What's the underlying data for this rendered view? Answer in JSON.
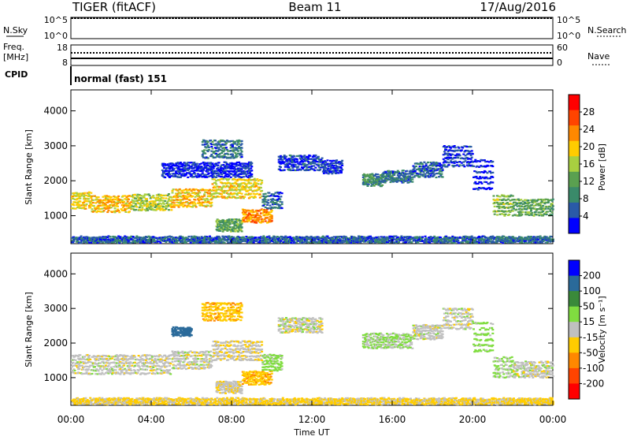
{
  "header": {
    "radar": "TIGER (fitACF)",
    "beam": "Beam 11",
    "date": "17/Aug/2016"
  },
  "strip_nsky": {
    "left_label": "N.Sky",
    "right_label": "N.Search",
    "left_ticks": [
      "10^5",
      "10^0"
    ],
    "right_ticks": [
      "10^5",
      "10^0"
    ]
  },
  "strip_freq": {
    "left_label_1": "Freq.",
    "left_label_2": "[MHz]",
    "right_label": "Nave",
    "left_ticks": [
      "18",
      "8"
    ],
    "right_ticks": [
      "60",
      "0"
    ]
  },
  "cpid": {
    "label": "CPID",
    "mode_text": "normal (fast) 151"
  },
  "colors": {
    "power_scale": [
      "#0000ff",
      "#2a5aa8",
      "#3a8a6a",
      "#5aa050",
      "#a8d040",
      "#ffcc00",
      "#ff8800",
      "#ff4400",
      "#ff0000"
    ],
    "velocity_scale": [
      "#ff0000",
      "#ff4400",
      "#ff8800",
      "#ffcc00",
      "#c0c0c0",
      "#80dd40",
      "#3a8a3a",
      "#2a6a9a",
      "#0000ff"
    ]
  },
  "chart_data": [
    {
      "type": "heatmap",
      "name": "power",
      "xlabel": "",
      "ylabel": "Slant Range [km]",
      "ylim": [
        200,
        4600
      ],
      "y_ticks": [
        "1000",
        "2000",
        "3000",
        "4000"
      ],
      "x_ticks": [
        "00:00",
        "04:00",
        "08:00",
        "12:00",
        "16:00",
        "20:00",
        "00:00"
      ],
      "colorbar_label": "Power [dB]",
      "colorbar_ticks": [
        "4",
        "8",
        "12",
        "16",
        "20",
        "24",
        "28"
      ],
      "bands": [
        {
          "t0": 0.0,
          "t1": 1.0,
          "r_lo": 1250,
          "r_hi": 1750,
          "dB": 20
        },
        {
          "t0": 1.0,
          "t1": 3.0,
          "r_lo": 1150,
          "r_hi": 1650,
          "dB": 22
        },
        {
          "t0": 3.0,
          "t1": 5.0,
          "r_lo": 1200,
          "r_hi": 1700,
          "dB": 18
        },
        {
          "t0": 5.0,
          "t1": 7.0,
          "r_lo": 1300,
          "r_hi": 1850,
          "dB": 22
        },
        {
          "t0": 7.0,
          "t1": 9.5,
          "r_lo": 1550,
          "r_hi": 2150,
          "dB": 20
        },
        {
          "t0": 7.2,
          "t1": 8.5,
          "r_lo": 600,
          "r_hi": 950,
          "dB": 14
        },
        {
          "t0": 8.5,
          "t1": 10.0,
          "r_lo": 850,
          "r_hi": 1250,
          "dB": 24
        },
        {
          "t0": 9.5,
          "t1": 10.5,
          "r_lo": 1250,
          "r_hi": 1750,
          "dB": 8
        },
        {
          "t0": 4.5,
          "t1": 9.0,
          "r_lo": 2150,
          "r_hi": 2600,
          "dB": 5
        },
        {
          "t0": 6.5,
          "t1": 8.5,
          "r_lo": 2700,
          "r_hi": 3250,
          "dB": 9
        },
        {
          "t0": 10.3,
          "t1": 12.5,
          "r_lo": 2350,
          "r_hi": 2800,
          "dB": 6
        },
        {
          "t0": 12.5,
          "t1": 13.5,
          "r_lo": 2250,
          "r_hi": 2650,
          "dB": 5
        },
        {
          "t0": 14.5,
          "t1": 15.5,
          "r_lo": 1900,
          "r_hi": 2250,
          "dB": 11
        },
        {
          "t0": 15.5,
          "t1": 17.0,
          "r_lo": 2000,
          "r_hi": 2350,
          "dB": 9
        },
        {
          "t0": 17.0,
          "t1": 18.5,
          "r_lo": 2150,
          "r_hi": 2600,
          "dB": 8
        },
        {
          "t0": 18.5,
          "t1": 20.0,
          "r_lo": 2450,
          "r_hi": 3100,
          "dB": 6
        },
        {
          "t0": 20.0,
          "t1": 21.0,
          "r_lo": 1800,
          "r_hi": 2750,
          "dB": 5
        },
        {
          "t0": 21.0,
          "t1": 22.0,
          "r_lo": 1050,
          "r_hi": 1700,
          "dB": 16
        },
        {
          "t0": 22.0,
          "t1": 24.0,
          "r_lo": 1050,
          "r_hi": 1550,
          "dB": 14
        },
        {
          "t0": 0.0,
          "t1": 24.0,
          "r_lo": 200,
          "r_hi": 450,
          "dB": 8
        }
      ]
    },
    {
      "type": "heatmap",
      "name": "velocity",
      "xlabel": "Time UT",
      "ylabel": "Slant Range [km]",
      "ylim": [
        200,
        4600
      ],
      "y_ticks": [
        "1000",
        "2000",
        "3000",
        "4000"
      ],
      "x_ticks": [
        "00:00",
        "04:00",
        "08:00",
        "12:00",
        "16:00",
        "20:00",
        "00:00"
      ],
      "colorbar_label": "Velocity [m s⁻¹]",
      "colorbar_ticks": [
        "200",
        "100",
        "50",
        "15",
        "-15",
        "-50",
        "-100",
        "-200"
      ],
      "bands": [
        {
          "t0": 0.0,
          "t1": 5.0,
          "r_lo": 1150,
          "r_hi": 1750,
          "v": 0
        },
        {
          "t0": 5.0,
          "t1": 7.0,
          "r_lo": 1300,
          "r_hi": 1850,
          "v": 0
        },
        {
          "t0": 7.0,
          "t1": 9.5,
          "r_lo": 1550,
          "r_hi": 2150,
          "v": -5
        },
        {
          "t0": 7.2,
          "t1": 8.5,
          "r_lo": 600,
          "r_hi": 950,
          "v": -5
        },
        {
          "t0": 8.5,
          "t1": 10.0,
          "r_lo": 850,
          "r_hi": 1250,
          "v": -40
        },
        {
          "t0": 9.5,
          "t1": 10.5,
          "r_lo": 1250,
          "r_hi": 1750,
          "v": 30
        },
        {
          "t0": 5.0,
          "t1": 6.0,
          "r_lo": 2250,
          "r_hi": 2500,
          "v": 150
        },
        {
          "t0": 6.5,
          "t1": 8.5,
          "r_lo": 2700,
          "r_hi": 3250,
          "v": -40
        },
        {
          "t0": 10.3,
          "t1": 12.5,
          "r_lo": 2350,
          "r_hi": 2800,
          "v": 0
        },
        {
          "t0": 14.5,
          "t1": 17.0,
          "r_lo": 1900,
          "r_hi": 2350,
          "v": 20
        },
        {
          "t0": 17.0,
          "t1": 18.5,
          "r_lo": 2150,
          "r_hi": 2600,
          "v": 0
        },
        {
          "t0": 18.5,
          "t1": 20.0,
          "r_lo": 2450,
          "r_hi": 3100,
          "v": 0
        },
        {
          "t0": 20.0,
          "t1": 21.0,
          "r_lo": 1800,
          "r_hi": 2750,
          "v": 30
        },
        {
          "t0": 21.0,
          "t1": 22.0,
          "r_lo": 1050,
          "r_hi": 1700,
          "v": 20
        },
        {
          "t0": 22.0,
          "t1": 24.0,
          "r_lo": 1050,
          "r_hi": 1550,
          "v": 0
        },
        {
          "t0": 0.0,
          "t1": 24.0,
          "r_lo": 200,
          "r_hi": 450,
          "v": -20
        }
      ]
    }
  ]
}
